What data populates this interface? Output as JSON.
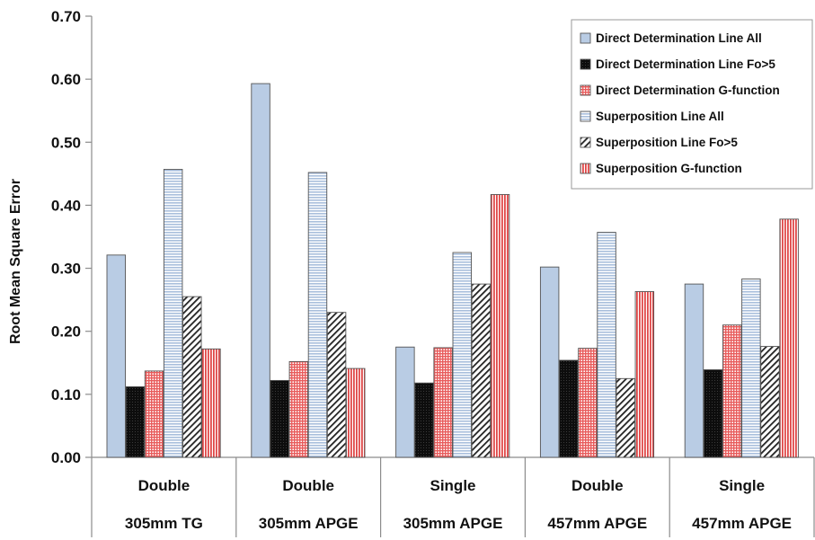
{
  "chart_data": {
    "type": "bar",
    "title": "",
    "ylabel": "Root Mean Square Error",
    "xlabel": "",
    "ylim": [
      0,
      0.7
    ],
    "yticks": [
      "0.00",
      "0.10",
      "0.20",
      "0.30",
      "0.40",
      "0.50",
      "0.60",
      "0.70"
    ],
    "grid": false,
    "legend_position": "top-right",
    "categories": [
      {
        "line1": "Double",
        "line2": "305mm TG"
      },
      {
        "line1": "Double",
        "line2": "305mm APGE"
      },
      {
        "line1": "Single",
        "line2": "305mm APGE"
      },
      {
        "line1": "Double",
        "line2": "457mm APGE"
      },
      {
        "line1": "Single",
        "line2": "457mm APGE"
      }
    ],
    "series": [
      {
        "name": "Direct Determination Line All",
        "values": [
          0.321,
          0.593,
          0.175,
          0.302,
          0.275
        ],
        "color": "#b9cce4",
        "pattern": "solid"
      },
      {
        "name": "Direct Determination Line Fo>5",
        "values": [
          0.112,
          0.122,
          0.118,
          0.154,
          0.139
        ],
        "color": "#111111",
        "pattern": "solid"
      },
      {
        "name": "Direct Determination G-function",
        "values": [
          0.137,
          0.152,
          0.174,
          0.173,
          0.21
        ],
        "color": "#f08a8a",
        "pattern": "grid"
      },
      {
        "name": "Superposition Line All",
        "values": [
          0.457,
          0.452,
          0.325,
          0.357,
          0.283
        ],
        "color": "#dce6f2",
        "pattern": "hlines"
      },
      {
        "name": "Superposition Line Fo>5",
        "values": [
          0.255,
          0.23,
          0.275,
          0.125,
          0.176
        ],
        "color": "#ffffff",
        "pattern": "diagonal"
      },
      {
        "name": "Superposition G-function",
        "values": [
          0.172,
          0.141,
          0.417,
          0.263,
          0.378
        ],
        "color": "#ee7070",
        "pattern": "vlines"
      }
    ]
  }
}
